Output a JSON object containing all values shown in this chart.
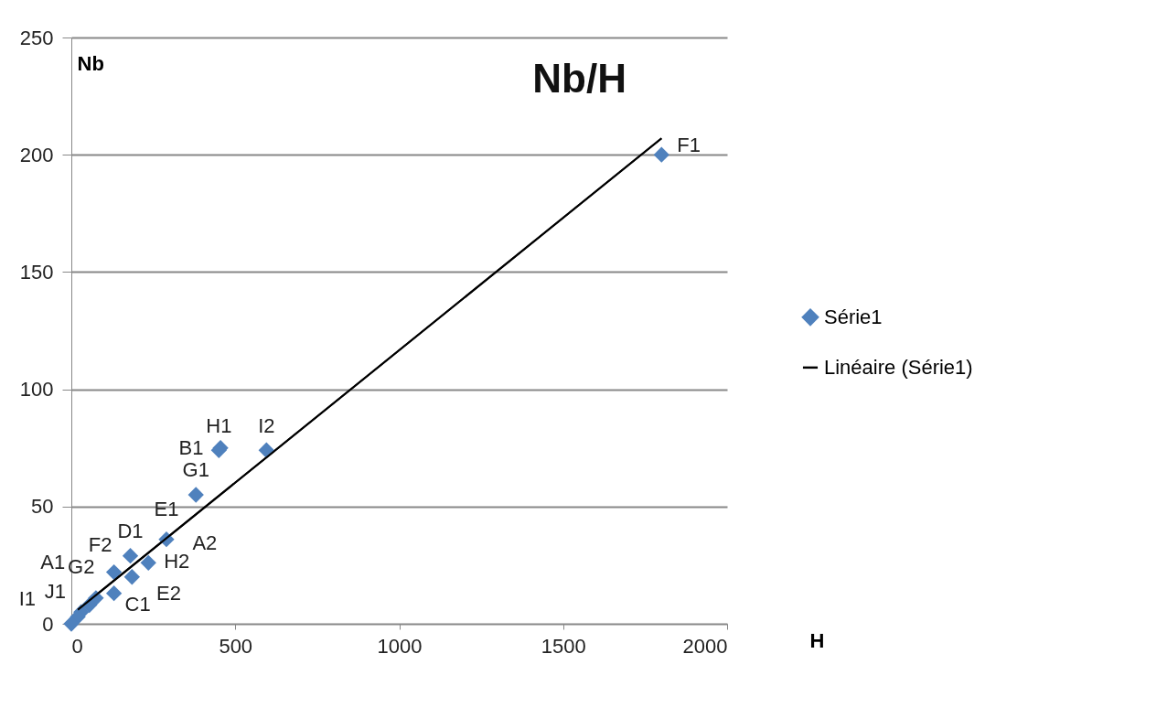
{
  "chart_data": {
    "type": "scatter",
    "title": "Nb/H",
    "xlabel": "H",
    "ylabel": "Nb",
    "xlim": [
      0,
      2000
    ],
    "xticks": [
      0,
      500,
      1000,
      1500,
      2000
    ],
    "ylim": [
      0,
      250
    ],
    "yticks": [
      0,
      50,
      100,
      150,
      200,
      250
    ],
    "grid": "y",
    "legend": "right",
    "marker": "diamond",
    "series": [
      {
        "name": "Série1",
        "color": "#4f81bd",
        "x": [
          1800,
          455,
          450,
          595,
          380,
          290,
          235,
          180,
          185,
          130,
          130,
          75,
          55,
          30,
          20,
          0
        ],
        "values": [
          200,
          75,
          74,
          74,
          55,
          36,
          26,
          29,
          20,
          22,
          13,
          11,
          8,
          5,
          3,
          0
        ],
        "value_labels": [
          "F1",
          "B1",
          "H1",
          "I2",
          "G1",
          "E1",
          "A2",
          "D1",
          "H2",
          "F2",
          "E2",
          "A1",
          "C1",
          "G2",
          "I1",
          "J1"
        ]
      },
      {
        "name": "Linéaire (Série1)",
        "type": "line",
        "marker": "none",
        "color": "#000000",
        "x": [
          20,
          1800
        ],
        "values": [
          6,
          207
        ]
      }
    ]
  }
}
